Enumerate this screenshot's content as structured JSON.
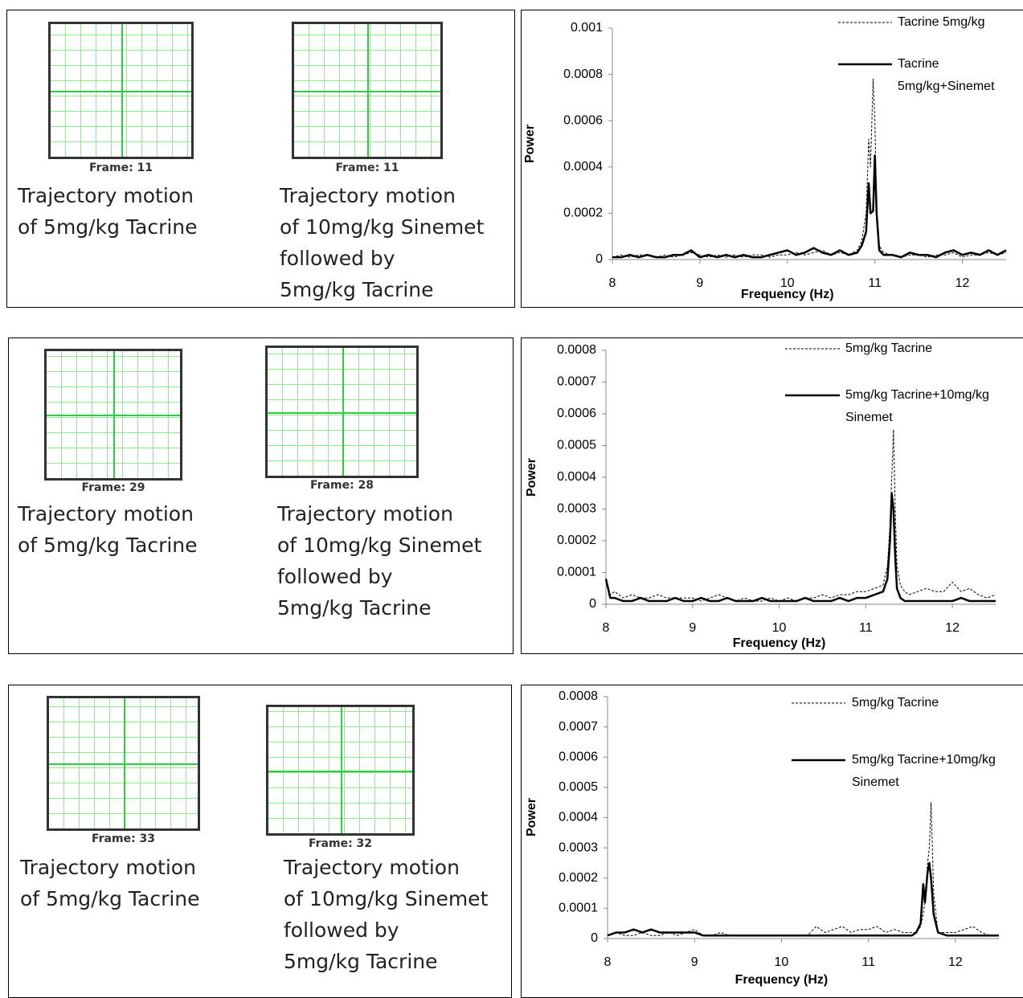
{
  "trajectory_panels": [
    {
      "items": [
        {
          "frame": "Frame: 11",
          "caption": [
            "Trajectory motion",
            "of 5mg/kg Tacrine"
          ]
        },
        {
          "frame": "Frame: 11",
          "caption": [
            "Trajectory motion",
            "of 10mg/kg Sinemet",
            "followed by",
            "5mg/kg Tacrine"
          ]
        }
      ]
    },
    {
      "items": [
        {
          "frame": "Frame: 29",
          "caption": [
            "Trajectory motion",
            "of 5mg/kg Tacrine"
          ]
        },
        {
          "frame": "Frame: 28",
          "caption": [
            "Trajectory motion",
            "of 10mg/kg Sinemet",
            "followed by",
            "5mg/kg Tacrine"
          ]
        }
      ]
    },
    {
      "items": [
        {
          "frame": "Frame: 33",
          "caption": [
            "Trajectory motion",
            "of 5mg/kg Tacrine"
          ]
        },
        {
          "frame": "Frame: 32",
          "caption": [
            "Trajectory motion",
            "of 10mg/kg Sinemet",
            "followed by",
            "5mg/kg Tacrine"
          ]
        }
      ]
    }
  ],
  "chart_data": [
    {
      "type": "line",
      "x_label": "Frequency (Hz)",
      "y_label": "Power",
      "xlim": [
        8,
        12.5
      ],
      "xticks": [
        8,
        9,
        10,
        11,
        12
      ],
      "ylim": [
        0,
        0.001
      ],
      "yticks": [
        0,
        0.0002,
        0.0004,
        0.0006,
        0.0008,
        0.001
      ],
      "x": [
        8,
        8.1,
        8.2,
        8.3,
        8.4,
        8.5,
        8.6,
        8.7,
        8.8,
        8.9,
        9,
        9.1,
        9.2,
        9.3,
        9.4,
        9.5,
        9.6,
        9.7,
        9.8,
        9.9,
        10,
        10.1,
        10.2,
        10.3,
        10.4,
        10.5,
        10.6,
        10.7,
        10.8,
        10.85,
        10.9,
        10.93,
        10.95,
        10.98,
        11,
        11.02,
        11.05,
        11.1,
        11.2,
        11.3,
        11.4,
        11.5,
        11.6,
        11.7,
        11.8,
        11.9,
        12,
        12.1,
        12.2,
        12.3,
        12.4,
        12.5
      ],
      "series": [
        {
          "name": "Tacrine 5mg/kg",
          "color": "#000000",
          "style": "dashed",
          "values": [
            1e-05,
            2e-05,
            1e-05,
            2e-05,
            2e-05,
            1e-05,
            2e-05,
            1e-05,
            2e-05,
            3e-05,
            2e-05,
            1e-05,
            2e-05,
            1e-05,
            2e-05,
            1e-05,
            2e-05,
            2e-05,
            1e-05,
            2e-05,
            2e-05,
            3e-05,
            2e-05,
            3e-05,
            4e-05,
            2e-05,
            3e-05,
            2e-05,
            4e-05,
            8e-05,
            0.0002,
            0.00052,
            0.0004,
            0.00078,
            0.0006,
            0.0002,
            6e-05,
            3e-05,
            2e-05,
            1e-05,
            2e-05,
            2e-05,
            1e-05,
            2e-05,
            2e-05,
            3e-05,
            1e-05,
            2e-05,
            2e-05,
            3e-05,
            2e-05,
            3e-05
          ]
        },
        {
          "name": "Tacrine 5mg/kg+Sinemet",
          "color": "#000000",
          "style": "solid",
          "values": [
            1e-05,
            1e-05,
            2e-05,
            1e-05,
            2e-05,
            1e-05,
            1e-05,
            2e-05,
            2e-05,
            4e-05,
            1e-05,
            2e-05,
            1e-05,
            2e-05,
            1e-05,
            2e-05,
            1e-05,
            1e-05,
            2e-05,
            3e-05,
            4e-05,
            2e-05,
            3e-05,
            5e-05,
            3e-05,
            2e-05,
            4e-05,
            2e-05,
            3e-05,
            6e-05,
            0.00012,
            0.00033,
            0.0002,
            0.00021,
            0.00045,
            0.0002,
            4e-05,
            2e-05,
            2e-05,
            1e-05,
            3e-05,
            2e-05,
            2e-05,
            1e-05,
            3e-05,
            4e-05,
            2e-05,
            3e-05,
            2e-05,
            4e-05,
            2e-05,
            4e-05
          ]
        }
      ]
    },
    {
      "type": "line",
      "x_label": "Frequency (Hz)",
      "y_label": "Power",
      "xlim": [
        8,
        12.5
      ],
      "xticks": [
        8,
        9,
        10,
        11,
        12
      ],
      "ylim": [
        0,
        0.0008
      ],
      "yticks": [
        0,
        0.0001,
        0.0002,
        0.0003,
        0.0004,
        0.0005,
        0.0006,
        0.0007,
        0.0008
      ],
      "x": [
        8,
        8.05,
        8.1,
        8.2,
        8.3,
        8.4,
        8.5,
        8.6,
        8.7,
        8.8,
        8.9,
        9,
        9.1,
        9.2,
        9.3,
        9.4,
        9.5,
        9.6,
        9.7,
        9.8,
        9.9,
        10,
        10.1,
        10.2,
        10.3,
        10.4,
        10.5,
        10.6,
        10.7,
        10.8,
        10.9,
        11,
        11.1,
        11.2,
        11.25,
        11.28,
        11.3,
        11.32,
        11.34,
        11.36,
        11.4,
        11.45,
        11.5,
        11.6,
        11.7,
        11.8,
        11.9,
        12,
        12.1,
        12.2,
        12.3,
        12.4,
        12.5
      ],
      "series": [
        {
          "name": "5mg/kg Tacrine",
          "color": "#000000",
          "style": "dashed",
          "values": [
            7e-05,
            3e-05,
            4e-05,
            2e-05,
            3e-05,
            2e-05,
            2e-05,
            3e-05,
            2e-05,
            2e-05,
            2e-05,
            2e-05,
            1e-05,
            2e-05,
            3e-05,
            2e-05,
            1e-05,
            2e-05,
            1e-05,
            1e-05,
            2e-05,
            1e-05,
            2e-05,
            1e-05,
            2e-05,
            2e-05,
            3e-05,
            2e-05,
            3e-05,
            3e-05,
            4e-05,
            4e-05,
            5e-05,
            6e-05,
            0.00012,
            0.00025,
            0.0004,
            0.00055,
            0.0003,
            0.00012,
            6e-05,
            4e-05,
            3e-05,
            4e-05,
            5e-05,
            4e-05,
            4e-05,
            7e-05,
            4e-05,
            5e-05,
            3e-05,
            2e-05,
            3e-05
          ]
        },
        {
          "name": "5mg/kg Tacrine+10mg/kg Sinemet",
          "color": "#000000",
          "style": "solid",
          "values": [
            8e-05,
            2e-05,
            2e-05,
            1e-05,
            1e-05,
            2e-05,
            1e-05,
            1e-05,
            1e-05,
            2e-05,
            1e-05,
            1e-05,
            2e-05,
            1e-05,
            1e-05,
            2e-05,
            1e-05,
            1e-05,
            1e-05,
            2e-05,
            1e-05,
            1e-05,
            1e-05,
            1e-05,
            2e-05,
            1e-05,
            1e-05,
            1e-05,
            2e-05,
            1e-05,
            2e-05,
            2e-05,
            3e-05,
            4e-05,
            8e-05,
            0.0002,
            0.00035,
            0.0003,
            0.00015,
            5e-05,
            2e-05,
            1e-05,
            1e-05,
            1e-05,
            1e-05,
            1e-05,
            1e-05,
            1e-05,
            2e-05,
            1e-05,
            1e-05,
            1e-05,
            1e-05
          ]
        }
      ]
    },
    {
      "type": "line",
      "x_label": "Frequency (Hz)",
      "y_label": "Power",
      "xlim": [
        8,
        12.5
      ],
      "xticks": [
        8,
        9,
        10,
        11,
        12
      ],
      "ylim": [
        0,
        0.0008
      ],
      "yticks": [
        0,
        0.0001,
        0.0002,
        0.0003,
        0.0004,
        0.0005,
        0.0006,
        0.0007,
        0.0008
      ],
      "x": [
        8,
        8.1,
        8.2,
        8.3,
        8.4,
        8.5,
        8.6,
        8.7,
        8.8,
        8.9,
        9,
        9.1,
        9.2,
        9.3,
        9.4,
        9.5,
        9.6,
        9.7,
        9.8,
        9.9,
        10,
        10.1,
        10.2,
        10.3,
        10.4,
        10.5,
        10.6,
        10.7,
        10.8,
        10.9,
        11,
        11.1,
        11.2,
        11.3,
        11.4,
        11.5,
        11.55,
        11.6,
        11.63,
        11.65,
        11.68,
        11.7,
        11.72,
        11.75,
        11.8,
        11.9,
        12,
        12.1,
        12.2,
        12.3,
        12.4,
        12.5
      ],
      "series": [
        {
          "name": "5mg/kg Tacrine",
          "color": "#000000",
          "style": "dashed",
          "values": [
            1e-05,
            2e-05,
            1e-05,
            1e-05,
            2e-05,
            1e-05,
            1e-05,
            2e-05,
            1e-05,
            2e-05,
            3e-05,
            1e-05,
            1e-05,
            2e-05,
            1e-05,
            1e-05,
            1e-05,
            1e-05,
            1e-05,
            1e-05,
            1e-05,
            1e-05,
            1e-05,
            1e-05,
            4e-05,
            2e-05,
            3e-05,
            4e-05,
            2e-05,
            3e-05,
            3e-05,
            4e-05,
            2e-05,
            3e-05,
            2e-05,
            2e-05,
            2e-05,
            4e-05,
            8e-05,
            0.00012,
            0.00025,
            0.0003,
            0.00045,
            0.00015,
            2e-05,
            2e-05,
            2e-05,
            3e-05,
            4e-05,
            2e-05,
            1e-05,
            1e-05
          ]
        },
        {
          "name": "5mg/kg Tacrine+10mg/kg Sinemet",
          "color": "#000000",
          "style": "solid",
          "values": [
            1e-05,
            2e-05,
            2e-05,
            3e-05,
            2e-05,
            3e-05,
            2e-05,
            2e-05,
            2e-05,
            2e-05,
            2e-05,
            1e-05,
            1e-05,
            1e-05,
            1e-05,
            1e-05,
            1e-05,
            1e-05,
            1e-05,
            1e-05,
            1e-05,
            1e-05,
            1e-05,
            1e-05,
            1e-05,
            1e-05,
            1e-05,
            1e-05,
            1e-05,
            1e-05,
            1e-05,
            1e-05,
            1e-05,
            1e-05,
            1e-05,
            1e-05,
            2e-05,
            5e-05,
            0.00018,
            0.00012,
            0.00022,
            0.00025,
            0.0002,
            8e-05,
            2e-05,
            1e-05,
            1e-05,
            1e-05,
            1e-05,
            1e-05,
            1e-05,
            1e-05
          ]
        }
      ]
    }
  ]
}
